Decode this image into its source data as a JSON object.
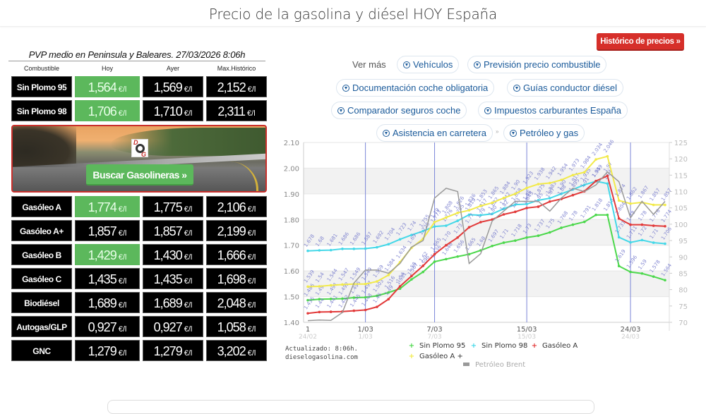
{
  "header": {
    "title": "Precio de la gasolina y diésel HOY España"
  },
  "historico_button": {
    "label": "Histórico de precios »",
    "color": "#d62f2a"
  },
  "prices": {
    "caption": "PVP medio en Peninsula y Baleares. 27/03/2026 8:06h",
    "columns": [
      "Combustible",
      "Hoy",
      "Ayer",
      "Max.Histórico"
    ],
    "unit": "€/l",
    "rows": [
      {
        "name": "Sin Plomo 95",
        "hoy": "1,564",
        "ayer": "1,569",
        "max": "2,152",
        "hoy_green": true
      },
      {
        "name": "Sin Plomo 98",
        "hoy": "1,706",
        "ayer": "1,710",
        "max": "2,311",
        "hoy_green": true
      },
      {
        "name": "Gasóleo A",
        "hoy": "1,774",
        "ayer": "1,775",
        "max": "2,106",
        "hoy_green": true
      },
      {
        "name": "Gasóleo A+",
        "hoy": "1,857",
        "ayer": "1,857",
        "max": "2,199",
        "hoy_green": false
      },
      {
        "name": "Gasóleo B",
        "hoy": "1,429",
        "ayer": "1,430",
        "max": "1,666",
        "hoy_green": true
      },
      {
        "name": "Gasóleo C",
        "hoy": "1,435",
        "ayer": "1,435",
        "max": "1,698",
        "hoy_green": false
      },
      {
        "name": "Biodiésel",
        "hoy": "1,689",
        "ayer": "1,689",
        "max": "2,048",
        "hoy_green": false
      },
      {
        "name": "Autogas/GLP",
        "hoy": "0,927",
        "ayer": "0,927",
        "max": "1,058",
        "hoy_green": false
      },
      {
        "name": "GNC",
        "hoy": "1,279",
        "ayer": "1,279",
        "max": "3,202",
        "hoy_green": false
      }
    ],
    "green_color": "#5cb85c"
  },
  "promo": {
    "logo_text_top": "D",
    "logo_text_bottom": "G",
    "button_label": "Buscar Gasolineras »"
  },
  "links": {
    "ver_mas": "Ver más",
    "chips": [
      "Vehículos",
      "Previsión precio combustible",
      "Documentación coche obligatoria",
      "Guías conductor diésel",
      "Comparador seguros coche",
      "Impuestos carburantes España",
      "Asistencia en carretera",
      "Petróleo y gas"
    ],
    "chip_color": "#1a5a9a"
  },
  "chart_footer": {
    "updated": "Actualizado: 8:06h.",
    "site": "dieselogasolina.com"
  },
  "chart_data": {
    "type": "line",
    "title": "",
    "xlabel": "",
    "ylabel": "",
    "ylim": [
      1.4,
      2.1
    ],
    "y2lim": [
      70,
      125
    ],
    "yticks": [
      "1.40",
      "1.50",
      "1.60",
      "1.70",
      "1.80",
      "1.90",
      "2.00",
      "2.10"
    ],
    "y2ticks": [
      "70",
      "75",
      "80",
      "85",
      "90",
      "95",
      "100",
      "105",
      "110",
      "115",
      "120",
      "125"
    ],
    "xtick_labels": [
      {
        "label": "1",
        "sub": "24/02",
        "index": 0
      },
      {
        "label": "1/03",
        "sub": "1/03",
        "index": 5
      },
      {
        "label": "7/03",
        "sub": "7/03",
        "index": 11
      },
      {
        "label": "15/03",
        "sub": "15/03",
        "index": 19
      },
      {
        "label": "24/03",
        "sub": "24/03",
        "index": 28
      }
    ],
    "n_points": 32,
    "grid": true,
    "legend_position": "bottom",
    "series": [
      {
        "name": "Sin Plomo 95",
        "color": "#4cd84c",
        "marker": "+",
        "values": [
          1.486,
          1.49,
          1.491,
          1.492,
          1.496,
          1.497,
          1.503,
          1.516,
          1.531,
          1.567,
          1.596,
          1.636,
          1.646,
          1.656,
          1.665,
          1.68,
          1.697,
          1.71,
          1.718,
          1.73,
          1.737,
          1.75,
          1.768,
          1.78,
          1.791,
          1.818,
          1.818,
          1.619,
          1.596,
          1.59,
          1.578,
          1.564
        ]
      },
      {
        "name": "Sin Plomo 98",
        "color": "#44d8e8",
        "marker": "+",
        "values": [
          1.678,
          1.68,
          1.681,
          1.686,
          1.686,
          1.687,
          1.692,
          1.704,
          1.723,
          1.74,
          1.755,
          1.773,
          1.776,
          1.795,
          1.819,
          1.817,
          1.822,
          1.842,
          1.858,
          1.86,
          1.875,
          1.883,
          1.9,
          1.917,
          1.935,
          1.949,
          1.94,
          1.731,
          1.711,
          1.72,
          1.71,
          1.706
        ]
      },
      {
        "name": "Gasóleo A",
        "color": "#e23a3a",
        "marker": "+",
        "values": [
          1.435,
          1.44,
          1.441,
          1.442,
          1.445,
          1.448,
          1.46,
          1.49,
          1.54,
          1.58,
          1.62,
          1.665,
          1.7,
          1.73,
          1.77,
          1.79,
          1.8,
          1.82,
          1.83,
          1.845,
          1.85,
          1.87,
          1.88,
          1.895,
          1.91,
          1.95,
          1.97,
          1.804,
          1.78,
          1.78,
          1.776,
          1.774
        ]
      },
      {
        "name": "Gasóleo A +",
        "color": "#f2ea4a",
        "marker": "+",
        "values": [
          1.539,
          1.54,
          1.544,
          1.547,
          1.549,
          1.549,
          1.559,
          1.584,
          1.634,
          1.69,
          1.725,
          1.79,
          1.808,
          1.826,
          1.836,
          1.853,
          1.865,
          1.884,
          1.9,
          1.923,
          1.938,
          1.942,
          1.954,
          1.973,
          1.984,
          2.034,
          2.046,
          1.874,
          1.862,
          1.867,
          1.857,
          1.857
        ]
      },
      {
        "name": "Petróleo Brent",
        "color": "#999999",
        "marker": "none",
        "axis": "right",
        "values": [
          70.5,
          70.7,
          70.6,
          73,
          82,
          86,
          86,
          85,
          88,
          93,
          95,
          108,
          111,
          110,
          88,
          91,
          101,
          104,
          107,
          107,
          107,
          104,
          108,
          111,
          110,
          112,
          116,
          113,
          102,
          107,
          103,
          107
        ]
      }
    ],
    "data_labels": true
  }
}
